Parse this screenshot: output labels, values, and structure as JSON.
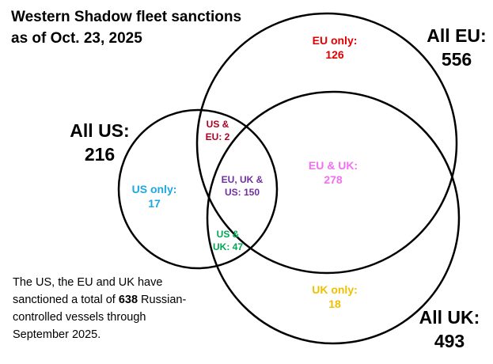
{
  "title_line1": "Western Shadow fleet sanctions",
  "title_line2": "as of Oct. 23, 2025",
  "sets": {
    "eu": {
      "label": "All EU:",
      "value": "556"
    },
    "us": {
      "label": "All US:",
      "value": "216"
    },
    "uk": {
      "label": "All UK:",
      "value": "493"
    }
  },
  "regions": {
    "eu_only": {
      "label": "EU only:",
      "value": "126",
      "color": "#e00000"
    },
    "us_eu": {
      "label_line1": "US &",
      "label_line2": "EU: 2",
      "color": "#b00020"
    },
    "us_only": {
      "label": "US only:",
      "value": "17",
      "color": "#1ea7e1"
    },
    "eu_uk_us": {
      "label_line1": "EU, UK &",
      "label_line2": "US: 150",
      "color": "#7030a0"
    },
    "eu_uk": {
      "label": "EU & UK:",
      "value": "278",
      "color": "#f070f0"
    },
    "us_uk": {
      "label_line1": "US &",
      "label_line2": "UK: 47",
      "color": "#00a651"
    },
    "uk_only": {
      "label": "UK only:",
      "value": "18",
      "color": "#f0c000"
    }
  },
  "note": {
    "text_before": "The US, the EU and UK have sanctioned a total of ",
    "total": "638",
    "text_after": " Russian-controlled vessels through September 2025."
  }
}
